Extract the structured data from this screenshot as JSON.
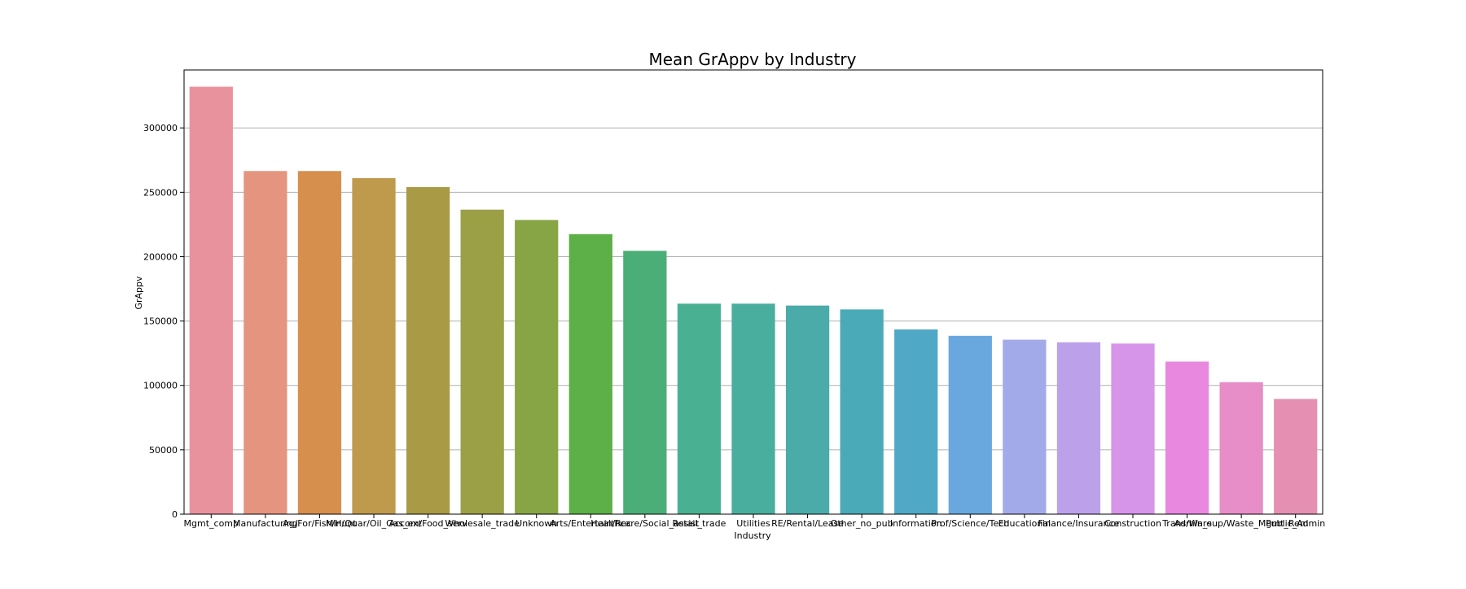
{
  "chart_data": {
    "type": "bar",
    "title": "Mean GrAppv by Industry",
    "xlabel": "Industry",
    "ylabel": "GrAppv",
    "ylim": [
      0,
      345000
    ],
    "yticks": [
      0,
      50000,
      100000,
      150000,
      200000,
      250000,
      300000
    ],
    "grid": "horizontal",
    "categories": [
      "Mgmt_comp",
      "Manufacturing",
      "Ag/For/Fish/Hunt",
      "Min/Quar/Oil_Gas_ext",
      "Accom/Food_serv",
      "Wholesale_trade",
      "Unknown",
      "Arts/Entertain/Rec",
      "Healthcare/Social_assist",
      "Retail_trade",
      "Utilities",
      "RE/Rental/Lease",
      "Other_no_pub",
      "Information",
      "Prof/Science/Tech",
      "Educational",
      "Finance/Insurance",
      "Construction",
      "Trans/Ware",
      "Admin_sup/Waste_Mgmt_Rem",
      "Public_Admin"
    ],
    "values": [
      332000,
      266500,
      266500,
      261000,
      254000,
      236500,
      228500,
      217500,
      204500,
      163500,
      163500,
      162000,
      159000,
      143500,
      138500,
      135500,
      133500,
      132500,
      118500,
      102500,
      89500
    ],
    "colors": [
      "#E8929E",
      "#E5957F",
      "#D78F4D",
      "#BF9A4D",
      "#A99A46",
      "#9B9F45",
      "#88A546",
      "#5DAF47",
      "#4BAE77",
      "#4AB092",
      "#4AAE9F",
      "#4AABA9",
      "#4BAAB8",
      "#4FA9C6",
      "#69A8DF",
      "#A3AAE9",
      "#BCA1EA",
      "#D695E8",
      "#E888DE",
      "#E78DC7",
      "#E590B2"
    ]
  }
}
